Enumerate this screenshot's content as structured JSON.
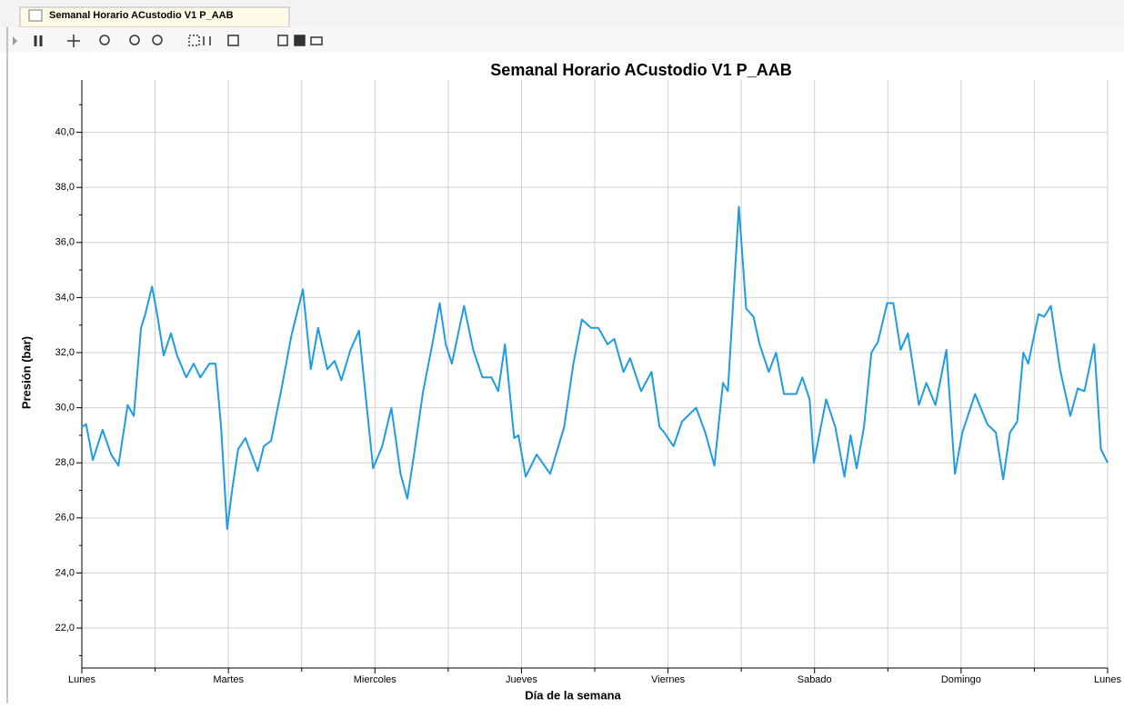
{
  "tab_title": "Semanal Horario ACustodio V1 P_AAB",
  "chart_data": {
    "type": "line",
    "title": "Semanal Horario ACustodio V1 P_AAB",
    "xlabel": "Día de la semana",
    "ylabel": "Presión (bar)",
    "xlim": [
      0,
      168
    ],
    "ylim": [
      20.55,
      41.9
    ],
    "xticks": [
      {
        "value": 0,
        "label": "Lunes"
      },
      {
        "value": 24,
        "label": "Martes"
      },
      {
        "value": 48,
        "label": "Miercoles"
      },
      {
        "value": 72,
        "label": "Jueves"
      },
      {
        "value": 96,
        "label": "Viernes"
      },
      {
        "value": 120,
        "label": "Sabado"
      },
      {
        "value": 144,
        "label": "Domingo"
      },
      {
        "value": 168,
        "label": "Lunes"
      }
    ],
    "xminorticks": [
      12,
      36,
      60,
      84,
      108,
      132,
      156
    ],
    "yticks": [
      {
        "value": 22,
        "label": "22,0"
      },
      {
        "value": 24,
        "label": "24,0"
      },
      {
        "value": 26,
        "label": "26,0"
      },
      {
        "value": 28,
        "label": "28,0"
      },
      {
        "value": 30,
        "label": "30,0"
      },
      {
        "value": 32,
        "label": "32,0"
      },
      {
        "value": 34,
        "label": "34,0"
      },
      {
        "value": 36,
        "label": "36,0"
      },
      {
        "value": 38,
        "label": "38,0"
      },
      {
        "value": 40,
        "label": "40,0"
      }
    ],
    "yminorticks": [
      21,
      23,
      25,
      27,
      29,
      31,
      33,
      35,
      37,
      39,
      41
    ],
    "grid": true,
    "series": [
      {
        "color": "#1e9be6",
        "x": [
          0,
          0.7,
          1.8,
          3.4,
          4.8,
          6.0,
          7.5,
          8.5,
          9.7,
          10.4,
          11.5,
          12.4,
          13.4,
          14.6,
          15.6,
          17.1,
          18.3,
          19.4,
          20.9,
          21.9,
          22.8,
          23.8,
          24.6,
          25.6,
          26.8,
          28.8,
          29.8,
          31.0,
          32.8,
          34.3,
          36.2,
          37.5,
          38.7,
          40.2,
          41.4,
          42.5,
          44.0,
          45.4,
          46.5,
          47.7,
          49.2,
          50.7,
          52.2,
          53.3,
          54.4,
          55.9,
          57.4,
          58.6,
          59.6,
          60.6,
          62.6,
          64.1,
          65.6,
          67.1,
          68.2,
          69.3,
          70.8,
          71.5,
          72.7,
          74.5,
          76.7,
          79.0,
          80.5,
          81.9,
          83.4,
          84.6,
          86.1,
          87.2,
          88.7,
          89.8,
          91.6,
          93.3,
          94.6,
          95.4,
          96.9,
          98.3,
          100.6,
          102.1,
          103.6,
          105.0,
          105.8,
          107.6,
          108.8,
          110.0,
          111.0,
          112.5,
          113.7,
          115.0,
          117.0,
          118.0,
          119.2,
          119.9,
          121.9,
          123.4,
          124.9,
          125.9,
          126.9,
          128.1,
          129.3,
          130.4,
          131.9,
          132.9,
          134.1,
          135.3,
          137.1,
          138.3,
          139.8,
          141.6,
          143.0,
          144.2,
          146.3,
          148.3,
          149.7,
          150.9,
          152.0,
          153.2,
          154.2,
          155.0,
          156.7,
          157.6,
          158.7,
          160.2,
          161.9,
          163.1,
          164.2,
          165.8,
          166.9,
          168.0
        ],
        "values": [
          29.3,
          29.4,
          28.1,
          29.2,
          28.3,
          27.9,
          30.1,
          29.7,
          32.9,
          33.4,
          34.4,
          33.3,
          31.9,
          32.7,
          31.9,
          31.1,
          31.6,
          31.1,
          31.6,
          31.6,
          29.3,
          25.6,
          27.0,
          28.5,
          28.9,
          27.7,
          28.6,
          28.8,
          30.8,
          32.6,
          34.3,
          31.4,
          32.9,
          31.4,
          31.7,
          31.0,
          32.1,
          32.8,
          30.4,
          27.8,
          28.6,
          30.0,
          27.6,
          26.7,
          28.3,
          30.6,
          32.3,
          33.8,
          32.3,
          31.6,
          33.7,
          32.1,
          31.1,
          31.1,
          30.6,
          32.3,
          28.9,
          29.0,
          27.5,
          28.3,
          27.6,
          29.3,
          31.6,
          33.2,
          32.9,
          32.9,
          32.3,
          32.5,
          31.3,
          31.8,
          30.6,
          31.3,
          29.3,
          29.1,
          28.6,
          29.5,
          30.0,
          29.1,
          27.9,
          30.9,
          30.6,
          37.3,
          33.6,
          33.3,
          32.3,
          31.3,
          32.0,
          30.5,
          30.5,
          31.1,
          30.3,
          28.0,
          30.3,
          29.3,
          27.5,
          29.0,
          27.8,
          29.3,
          32.0,
          32.4,
          33.8,
          33.8,
          32.1,
          32.7,
          30.1,
          30.9,
          30.1,
          32.1,
          27.6,
          29.1,
          30.5,
          29.4,
          29.1,
          27.4,
          29.1,
          29.5,
          32.0,
          31.6,
          33.4,
          33.3,
          33.7,
          31.4,
          29.7,
          30.7,
          30.6,
          32.3,
          28.5,
          28.0
        ]
      }
    ]
  }
}
